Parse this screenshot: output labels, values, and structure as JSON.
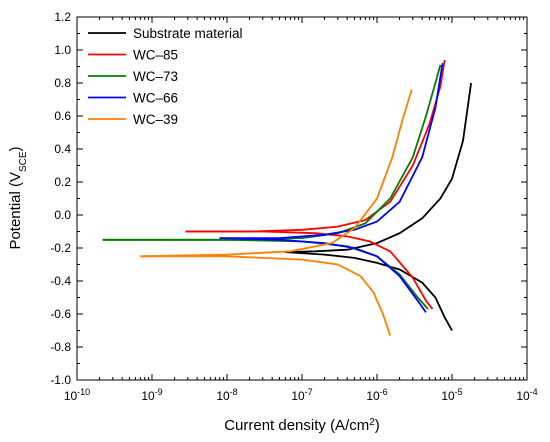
{
  "chart_data": {
    "type": "line",
    "xlabel": "Current density (A/cm",
    "xlabel_sup": "2",
    "xlabel_end": ")",
    "ylabel": "Potential (V",
    "ylabel_sub": "SCE",
    "ylabel_end": ")",
    "x_scale": "log",
    "xlim": [
      1e-10,
      0.0001
    ],
    "ylim": [
      -1.0,
      1.2
    ],
    "x_ticks": [
      1e-10,
      1e-09,
      1e-08,
      1e-07,
      1e-06,
      1e-05,
      0.0001
    ],
    "x_tick_base": "10",
    "x_tick_exponents": [
      "-10",
      "-9",
      "-8",
      "-7",
      "-6",
      "-5",
      "-4"
    ],
    "y_ticks": [
      -1.0,
      -0.8,
      -0.6,
      -0.4,
      -0.2,
      0.0,
      0.2,
      0.4,
      0.6,
      0.8,
      1.0,
      1.2
    ],
    "y_tick_labels": [
      "-1.0",
      "-0.8",
      "-0.6",
      "-0.4",
      "-0.2",
      "0.0",
      "0.2",
      "0.4",
      "0.6",
      "0.8",
      "1.0",
      "1.2"
    ],
    "grid": false,
    "legend_position": "top-left",
    "series": [
      {
        "name": "Substrate material",
        "color": "#000000",
        "anodic": [
          [
            6e-08,
            -0.225
          ],
          [
            1.5e-07,
            -0.22
          ],
          [
            4e-07,
            -0.21
          ],
          [
            1e-06,
            -0.17
          ],
          [
            2e-06,
            -0.11
          ],
          [
            4e-06,
            -0.02
          ],
          [
            7e-06,
            0.1
          ],
          [
            1e-05,
            0.22
          ],
          [
            1.4e-05,
            0.45
          ],
          [
            1.8e-05,
            0.8
          ]
        ],
        "cathodic": [
          [
            6e-08,
            -0.225
          ],
          [
            2e-07,
            -0.24
          ],
          [
            5e-07,
            -0.26
          ],
          [
            1e-06,
            -0.29
          ],
          [
            2e-06,
            -0.33
          ],
          [
            4e-06,
            -0.41
          ],
          [
            6e-06,
            -0.5
          ],
          [
            8e-06,
            -0.62
          ],
          [
            1e-05,
            -0.7
          ]
        ]
      },
      {
        "name": "WC–85",
        "color": "#ff0000",
        "anodic": [
          [
            2.8e-09,
            -0.1
          ],
          [
            2e-08,
            -0.1
          ],
          [
            1e-07,
            -0.09
          ],
          [
            3e-07,
            -0.07
          ],
          [
            7e-07,
            -0.03
          ],
          [
            1.5e-06,
            0.08
          ],
          [
            3e-06,
            0.3
          ],
          [
            5e-06,
            0.55
          ],
          [
            7e-06,
            0.78
          ],
          [
            8e-06,
            0.94
          ]
        ],
        "cathodic": [
          [
            2.8e-09,
            -0.1
          ],
          [
            3e-08,
            -0.1
          ],
          [
            1.5e-07,
            -0.11
          ],
          [
            4e-07,
            -0.13
          ],
          [
            8e-07,
            -0.16
          ],
          [
            1.5e-06,
            -0.22
          ],
          [
            3e-06,
            -0.38
          ],
          [
            4.5e-06,
            -0.52
          ],
          [
            5.5e-06,
            -0.57
          ]
        ]
      },
      {
        "name": "WC–73",
        "color": "#008000",
        "anodic": [
          [
            2.2e-10,
            -0.15
          ],
          [
            1e-08,
            -0.15
          ],
          [
            1e-07,
            -0.14
          ],
          [
            3e-07,
            -0.11
          ],
          [
            7e-07,
            -0.05
          ],
          [
            1.5e-06,
            0.1
          ],
          [
            3e-06,
            0.35
          ],
          [
            4.5e-06,
            0.6
          ],
          [
            6e-06,
            0.8
          ],
          [
            7e-06,
            0.91
          ]
        ],
        "cathodic": [
          [
            2.2e-10,
            -0.15
          ],
          [
            1e-08,
            -0.15
          ],
          [
            1e-07,
            -0.16
          ],
          [
            4e-07,
            -0.19
          ],
          [
            1e-06,
            -0.25
          ],
          [
            2e-06,
            -0.36
          ],
          [
            3.5e-06,
            -0.5
          ],
          [
            4.8e-06,
            -0.57
          ]
        ]
      },
      {
        "name": "WC–66",
        "color": "#0000ff",
        "anodic": [
          [
            8e-09,
            -0.14
          ],
          [
            5e-08,
            -0.14
          ],
          [
            2e-07,
            -0.12
          ],
          [
            5e-07,
            -0.09
          ],
          [
            1e-06,
            -0.04
          ],
          [
            2e-06,
            0.08
          ],
          [
            4e-06,
            0.35
          ],
          [
            6e-06,
            0.65
          ],
          [
            7.5e-06,
            0.92
          ]
        ],
        "cathodic": [
          [
            8e-09,
            -0.14
          ],
          [
            5e-08,
            -0.15
          ],
          [
            2e-07,
            -0.17
          ],
          [
            5e-07,
            -0.2
          ],
          [
            1e-06,
            -0.25
          ],
          [
            2e-06,
            -0.37
          ],
          [
            3.5e-06,
            -0.52
          ],
          [
            4.5e-06,
            -0.59
          ]
        ]
      },
      {
        "name": "WC–39",
        "color": "#ff8000",
        "anodic": [
          [
            7e-10,
            -0.25
          ],
          [
            1e-08,
            -0.24
          ],
          [
            7e-08,
            -0.22
          ],
          [
            2.5e-07,
            -0.17
          ],
          [
            5e-07,
            -0.08
          ],
          [
            1e-06,
            0.1
          ],
          [
            1.6e-06,
            0.35
          ],
          [
            2.2e-06,
            0.58
          ],
          [
            2.9e-06,
            0.76
          ]
        ],
        "cathodic": [
          [
            7e-10,
            -0.25
          ],
          [
            1e-08,
            -0.25
          ],
          [
            1e-07,
            -0.27
          ],
          [
            3e-07,
            -0.3
          ],
          [
            6e-07,
            -0.37
          ],
          [
            9e-07,
            -0.47
          ],
          [
            1.2e-06,
            -0.6
          ],
          [
            1.5e-06,
            -0.73
          ]
        ]
      }
    ]
  }
}
